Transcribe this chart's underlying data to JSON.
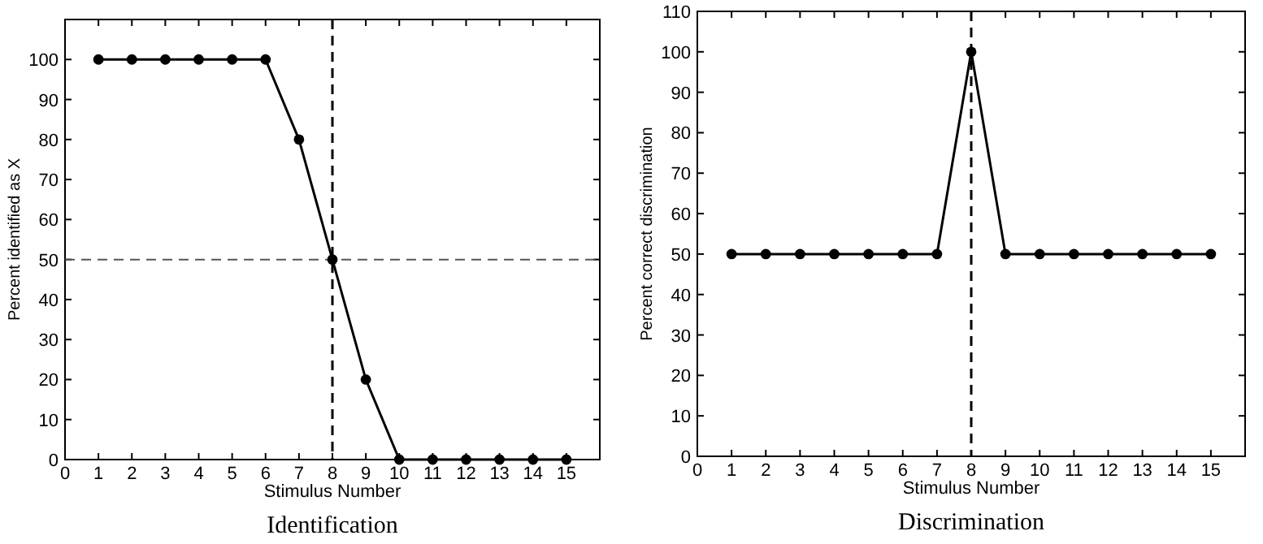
{
  "chart_data": [
    {
      "type": "line",
      "title": "Identification",
      "xlabel": "Stimulus Number",
      "ylabel": "Percent identified as X",
      "x": [
        1,
        2,
        3,
        4,
        5,
        6,
        7,
        8,
        9,
        10,
        11,
        12,
        13,
        14,
        15
      ],
      "series": [
        {
          "color": "#000000",
          "values": [
            100,
            100,
            100,
            100,
            100,
            100,
            80,
            50,
            20,
            0,
            0,
            0,
            0,
            0,
            0
          ]
        }
      ],
      "xlim": [
        0,
        16
      ],
      "xticks": [
        0,
        1,
        2,
        3,
        4,
        5,
        6,
        7,
        8,
        9,
        10,
        11,
        12,
        13,
        14,
        15
      ],
      "ylim": [
        0,
        110
      ],
      "yticks": [
        0,
        10,
        20,
        30,
        40,
        50,
        60,
        70,
        80,
        90,
        100
      ],
      "marker": "circle",
      "grid": false,
      "ref_lines": [
        {
          "axis": "x",
          "value": 8,
          "line_style": "dashed",
          "color": "#000000"
        },
        {
          "axis": "y",
          "value": 50,
          "line_style": "dashed",
          "color": "#555555"
        }
      ]
    },
    {
      "type": "line",
      "title": "Discrimination",
      "xlabel": "Stimulus Number",
      "ylabel": "Percent correct discrimination",
      "x": [
        1,
        2,
        3,
        4,
        5,
        6,
        7,
        8,
        9,
        10,
        11,
        12,
        13,
        14,
        15
      ],
      "series": [
        {
          "color": "#000000",
          "values": [
            50,
            50,
            50,
            50,
            50,
            50,
            50,
            100,
            50,
            50,
            50,
            50,
            50,
            50,
            50
          ]
        }
      ],
      "xlim": [
        0,
        16
      ],
      "xticks": [
        0,
        1,
        2,
        3,
        4,
        5,
        6,
        7,
        8,
        9,
        10,
        11,
        12,
        13,
        14,
        15
      ],
      "ylim": [
        0,
        110
      ],
      "yticks": [
        0,
        10,
        20,
        30,
        40,
        50,
        60,
        70,
        80,
        90,
        100,
        110
      ],
      "marker": "circle",
      "grid": false,
      "ref_lines": [
        {
          "axis": "x",
          "value": 8,
          "line_style": "dashed",
          "color": "#000000"
        }
      ]
    }
  ]
}
